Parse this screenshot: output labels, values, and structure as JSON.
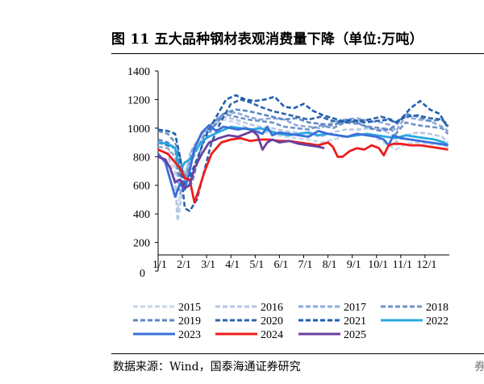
{
  "title": "图 11 五大品种钢材表观消费量下降（单位:万吨）",
  "source": "数据来源：Wind，国泰海通证券研究",
  "edge_glyph": "券",
  "colors": {
    "2015": "#c9d6ea",
    "2016": "#b5c8e3",
    "2017": "#8eaadb",
    "2018": "#6f93c7",
    "2019": "#5b87c6",
    "2020": "#2e64aa",
    "2021": "#1f5fb0",
    "2022": "#29a8e0",
    "2023": "#3a6fd8",
    "2024": "#ee1c1c",
    "2025": "#6b3fa0"
  },
  "chart_data": {
    "type": "line",
    "title": "图 11 五大品种钢材表观消费量下降（单位:万吨）",
    "xlabel": "",
    "ylabel": "",
    "ylim": [
      0,
      1400
    ],
    "yticks": [
      0,
      200,
      400,
      600,
      800,
      1000,
      1200,
      1400
    ],
    "xlim": [
      0,
      12
    ],
    "xticks": [
      {
        "x": 0,
        "label": "1/1"
      },
      {
        "x": 1,
        "label": "2/1"
      },
      {
        "x": 2,
        "label": "3/1"
      },
      {
        "x": 3,
        "label": "4/1"
      },
      {
        "x": 4,
        "label": "5/1"
      },
      {
        "x": 5,
        "label": "6/1"
      },
      {
        "x": 6,
        "label": "7/1"
      },
      {
        "x": 7,
        "label": "8/1"
      },
      {
        "x": 8,
        "label": "9/1"
      },
      {
        "x": 9,
        "label": "10/1"
      },
      {
        "x": 10,
        "label": "11/1"
      },
      {
        "x": 11,
        "label": "12/1"
      }
    ],
    "legend_position": "bottom",
    "series": [
      {
        "name": "2015",
        "style": "dash",
        "x": [
          0,
          0.4,
          0.7,
          0.8,
          1,
          1.3,
          1.7,
          2.2,
          2.7,
          3.2,
          3.7,
          4.2,
          4.7,
          5.2,
          5.7,
          6.2,
          6.7,
          7.2,
          7.7,
          8.2,
          8.7,
          9.2,
          9.6,
          9.8,
          10.2,
          10.7,
          11.2,
          11.7,
          11.95
        ],
        "y": [
          900,
          880,
          700,
          420,
          640,
          790,
          900,
          1000,
          1060,
          1040,
          1000,
          980,
          960,
          940,
          930,
          920,
          900,
          920,
          940,
          950,
          960,
          910,
          870,
          850,
          890,
          900,
          890,
          880,
          870
        ]
      },
      {
        "name": "2016",
        "style": "dash",
        "x": [
          0,
          0.4,
          0.7,
          0.8,
          1,
          1.3,
          1.7,
          2.2,
          2.7,
          3.2,
          3.7,
          4.2,
          4.7,
          5.2,
          5.7,
          6.2,
          6.7,
          7.2,
          7.7,
          8.2,
          8.7,
          9.2,
          9.6,
          9.8,
          10.2,
          10.7,
          11.2,
          11.7,
          11.95
        ],
        "y": [
          850,
          820,
          620,
          350,
          560,
          820,
          920,
          1010,
          1080,
          1060,
          1030,
          1010,
          1000,
          980,
          970,
          960,
          940,
          970,
          990,
          990,
          1000,
          990,
          960,
          900,
          950,
          970,
          960,
          940,
          900
        ]
      },
      {
        "name": "2017",
        "style": "dash",
        "x": [
          0,
          0.4,
          0.7,
          0.9,
          1.1,
          1.4,
          1.8,
          2.2,
          2.7,
          3.2,
          3.7,
          4.2,
          4.7,
          5.2,
          5.7,
          6.2,
          6.7,
          7.2,
          7.7,
          8.2,
          8.7,
          9.2,
          9.6,
          9.8,
          10.2,
          10.7,
          11.2,
          11.7,
          11.95
        ],
        "y": [
          870,
          860,
          800,
          540,
          620,
          850,
          960,
          1030,
          1100,
          1110,
          1080,
          1060,
          1070,
          1060,
          1020,
          1010,
          1000,
          1040,
          1060,
          1070,
          1050,
          1040,
          1020,
          980,
          1080,
          1060,
          1050,
          1010,
          980
        ]
      },
      {
        "name": "2018",
        "style": "dash",
        "x": [
          0,
          0.4,
          0.7,
          0.9,
          1.1,
          1.4,
          1.8,
          2.2,
          2.7,
          3.2,
          3.7,
          4.2,
          4.7,
          5.2,
          5.7,
          6.2,
          6.7,
          7.2,
          7.7,
          8.2,
          8.7,
          9.2,
          9.6,
          9.8,
          10.2,
          10.7,
          11.2,
          11.7,
          11.95
        ],
        "y": [
          980,
          960,
          900,
          800,
          650,
          780,
          920,
          1030,
          1100,
          1080,
          1060,
          1050,
          1040,
          1010,
          1000,
          990,
          1020,
          1000,
          1040,
          1030,
          1010,
          1000,
          990,
          960,
          1040,
          1020,
          1010,
          1000,
          960
        ]
      },
      {
        "name": "2019",
        "style": "dash",
        "x": [
          0,
          0.4,
          0.7,
          0.9,
          1.1,
          1.4,
          1.8,
          2.2,
          2.7,
          3.2,
          3.7,
          4.2,
          4.7,
          5.2,
          5.7,
          6.2,
          6.7,
          7.2,
          7.7,
          8.2,
          8.7,
          9.2,
          9.6,
          9.8,
          10.2,
          10.7,
          11.2,
          11.7,
          11.95
        ],
        "y": [
          920,
          900,
          860,
          640,
          580,
          620,
          880,
          990,
          1100,
          1130,
          1120,
          1100,
          1080,
          1060,
          1070,
          1040,
          1030,
          1020,
          1050,
          1040,
          1000,
          980,
          1000,
          1020,
          1100,
          1080,
          1050,
          1060,
          1010
        ]
      },
      {
        "name": "2020",
        "style": "dash",
        "x": [
          0,
          0.4,
          0.7,
          0.9,
          1.1,
          1.3,
          1.6,
          1.9,
          2.2,
          2.6,
          3,
          3.4,
          3.8,
          4.2,
          4.7,
          5.2,
          5.7,
          6.2,
          6.7,
          7.2,
          7.7,
          8.2,
          8.7,
          9.2,
          9.6,
          9.8,
          10.2,
          10.7,
          11.2,
          11.7,
          11.95
        ],
        "y": [
          900,
          880,
          860,
          760,
          440,
          420,
          500,
          700,
          900,
          1050,
          1170,
          1200,
          1180,
          1150,
          1120,
          1100,
          1080,
          1060,
          1080,
          1050,
          1040,
          1050,
          1060,
          1080,
          1060,
          1040,
          1080,
          1090,
          1070,
          1060,
          1020
        ]
      },
      {
        "name": "2021",
        "style": "dash",
        "x": [
          0,
          0.4,
          0.7,
          0.9,
          1.1,
          1.3,
          1.6,
          2,
          2.4,
          2.8,
          3.2,
          3.6,
          4,
          4.4,
          4.8,
          5.2,
          5.6,
          6,
          6.4,
          6.8,
          7.2,
          7.6,
          8,
          8.5,
          9,
          9.5,
          9.8,
          10.1,
          10.4,
          10.8,
          11.2,
          11.6,
          11.95
        ],
        "y": [
          990,
          980,
          960,
          800,
          600,
          660,
          780,
          960,
          1080,
          1200,
          1230,
          1200,
          1190,
          1200,
          1220,
          1150,
          1140,
          1170,
          1120,
          1090,
          1070,
          1050,
          1060,
          1040,
          1050,
          1060,
          1040,
          1080,
          1140,
          1190,
          1130,
          1100,
          1000
        ]
      },
      {
        "name": "2022",
        "style": "solid",
        "x": [
          0,
          0.4,
          0.7,
          0.9,
          1.1,
          1.3,
          1.6,
          1.9,
          2.2,
          2.6,
          3,
          3.4,
          3.8,
          4.2,
          4.6,
          5,
          5.4,
          5.8,
          6.2,
          6.6,
          7,
          7.4,
          7.8,
          8.2,
          8.6,
          9,
          9.4,
          9.8,
          10.2,
          10.6,
          11,
          11.4,
          11.8,
          11.95
        ],
        "y": [
          900,
          890,
          860,
          700,
          760,
          780,
          860,
          920,
          950,
          980,
          1010,
          1000,
          990,
          1000,
          980,
          960,
          950,
          960,
          970,
          950,
          960,
          950,
          940,
          950,
          960,
          950,
          940,
          930,
          950,
          940,
          930,
          920,
          900,
          880
        ]
      },
      {
        "name": "2023",
        "style": "solid",
        "x": [
          0,
          0.3,
          0.5,
          0.7,
          0.9,
          1.1,
          1.3,
          1.5,
          1.8,
          2.1,
          2.4,
          2.7,
          3,
          3.3,
          3.6,
          4,
          4.3,
          4.5,
          4.7,
          5,
          5.4,
          5.8,
          6.2,
          6.6,
          7,
          7.4,
          7.8,
          8.2,
          8.6,
          9,
          9.3,
          9.5,
          9.7,
          10,
          10.4,
          10.8,
          11.2,
          11.6,
          11.95
        ],
        "y": [
          820,
          760,
          640,
          520,
          610,
          570,
          700,
          860,
          970,
          1020,
          980,
          1010,
          1000,
          990,
          1000,
          980,
          960,
          1010,
          950,
          970,
          960,
          950,
          940,
          980,
          960,
          950,
          940,
          960,
          950,
          940,
          920,
          880,
          950,
          930,
          920,
          910,
          900,
          890,
          880
        ]
      },
      {
        "name": "2024",
        "style": "solid",
        "x": [
          0,
          0.4,
          0.7,
          0.9,
          1.1,
          1.3,
          1.5,
          1.7,
          1.9,
          2.2,
          2.6,
          3,
          3.4,
          3.8,
          4.2,
          4.6,
          5,
          5.4,
          5.8,
          6.2,
          6.6,
          7,
          7.2,
          7.4,
          7.6,
          7.9,
          8.2,
          8.5,
          8.8,
          9.1,
          9.3,
          9.5,
          9.7,
          10,
          10.4,
          10.8,
          11.2,
          11.6,
          11.95
        ],
        "y": [
          850,
          820,
          760,
          720,
          650,
          640,
          480,
          580,
          690,
          820,
          900,
          920,
          930,
          910,
          920,
          920,
          910,
          910,
          900,
          890,
          880,
          900,
          870,
          800,
          800,
          840,
          860,
          850,
          880,
          860,
          810,
          880,
          890,
          890,
          880,
          880,
          870,
          860,
          850
        ]
      },
      {
        "name": "2025",
        "style": "solid",
        "x": [
          0,
          0.3,
          0.5,
          0.7,
          0.9,
          1.1,
          1.3,
          1.5,
          1.8,
          2.1,
          2.5,
          2.9,
          3.3,
          3.6,
          3.9,
          4.1,
          4.3,
          4.5,
          4.7,
          5,
          5.4,
          5.8,
          6.2,
          6.6,
          6.85
        ],
        "y": [
          800,
          780,
          720,
          620,
          640,
          580,
          600,
          720,
          820,
          900,
          930,
          950,
          940,
          960,
          980,
          950,
          850,
          900,
          920,
          900,
          910,
          890,
          880,
          870,
          860
        ]
      }
    ]
  }
}
